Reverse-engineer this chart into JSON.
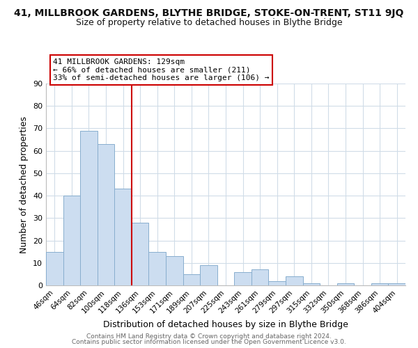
{
  "title": "41, MILLBROOK GARDENS, BLYTHE BRIDGE, STOKE-ON-TRENT, ST11 9JQ",
  "subtitle": "Size of property relative to detached houses in Blythe Bridge",
  "xlabel": "Distribution of detached houses by size in Blythe Bridge",
  "ylabel": "Number of detached properties",
  "categories": [
    "46sqm",
    "64sqm",
    "82sqm",
    "100sqm",
    "118sqm",
    "136sqm",
    "153sqm",
    "171sqm",
    "189sqm",
    "207sqm",
    "225sqm",
    "243sqm",
    "261sqm",
    "279sqm",
    "297sqm",
    "315sqm",
    "332sqm",
    "350sqm",
    "368sqm",
    "386sqm",
    "404sqm"
  ],
  "values": [
    15,
    40,
    69,
    63,
    43,
    28,
    15,
    13,
    5,
    9,
    0,
    6,
    7,
    2,
    4,
    1,
    0,
    1,
    0,
    1,
    1
  ],
  "bar_color": "#ccddf0",
  "bar_edge_color": "#88aece",
  "grid_color": "#d0dce8",
  "ylim": [
    0,
    90
  ],
  "yticks": [
    0,
    10,
    20,
    30,
    40,
    50,
    60,
    70,
    80,
    90
  ],
  "vline_color": "#cc0000",
  "vline_x": 4.5,
  "annotation_title": "41 MILLBROOK GARDENS: 129sqm",
  "annotation_line1": "← 66% of detached houses are smaller (211)",
  "annotation_line2": "33% of semi-detached houses are larger (106) →",
  "annotation_box_color": "#ffffff",
  "annotation_box_edge": "#cc0000",
  "footer1": "Contains HM Land Registry data © Crown copyright and database right 2024.",
  "footer2": "Contains public sector information licensed under the Open Government Licence v3.0.",
  "background_color": "#ffffff",
  "plot_background": "#ffffff",
  "title_fontsize": 10,
  "subtitle_fontsize": 9
}
